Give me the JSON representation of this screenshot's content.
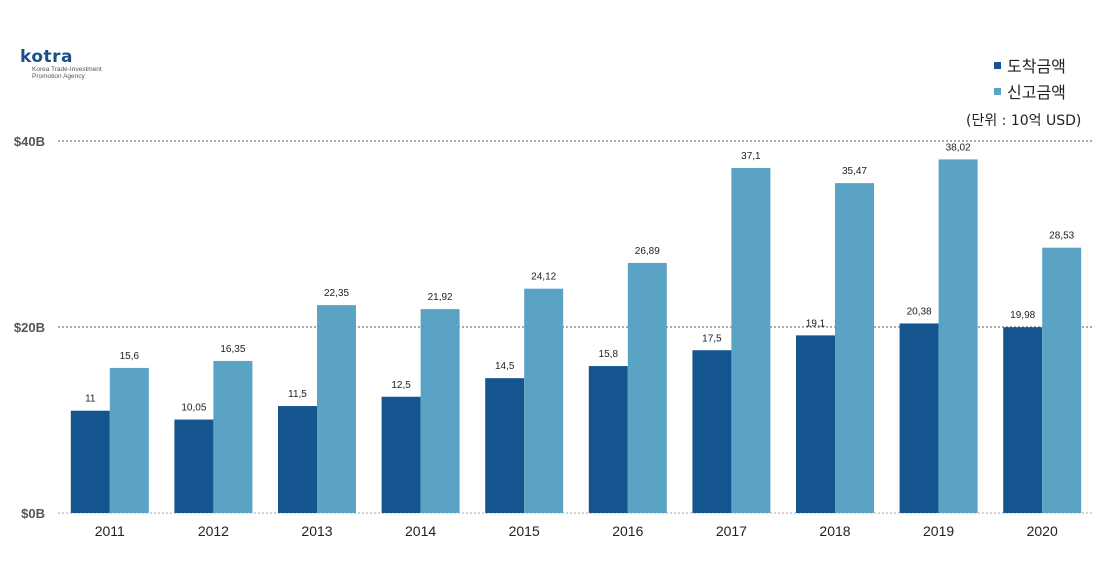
{
  "logo": {
    "brand": "kotra",
    "line1": "Korea Trade-Investment",
    "line2": "Promotion Agency"
  },
  "unit_note": "(단위 : 10억 USD)",
  "colors": {
    "arrival": "#15558f",
    "reported": "#5ba3c4",
    "gridline": "#555555",
    "baseline": "#aaaaaa"
  },
  "chart_data": {
    "type": "bar",
    "categories": [
      "2011",
      "2012",
      "2013",
      "2014",
      "2015",
      "2016",
      "2017",
      "2018",
      "2019",
      "2020"
    ],
    "series": [
      {
        "name": "도착금액",
        "values": [
          11,
          10.05,
          11.5,
          12.5,
          14.5,
          15.8,
          17.5,
          19.1,
          20.38,
          19.98
        ],
        "labels": [
          "11",
          "10,05",
          "11,5",
          "12,5",
          "14,5",
          "15,8",
          "17,5",
          "19,1",
          "20,38",
          "19,98"
        ]
      },
      {
        "name": "신고금액",
        "values": [
          15.6,
          16.35,
          22.35,
          21.92,
          24.12,
          26.89,
          37.1,
          35.47,
          38.02,
          28.53
        ],
        "labels": [
          "15,6",
          "16,35",
          "22,35",
          "21,92",
          "24,12",
          "26,89",
          "37,1",
          "35,47",
          "38,02",
          "28,53"
        ]
      }
    ],
    "ylim": [
      0,
      40
    ],
    "yticks": [
      {
        "value": 0,
        "label": "$0B"
      },
      {
        "value": 20,
        "label": "$20B"
      },
      {
        "value": 40,
        "label": "$40B"
      }
    ],
    "grid": true,
    "legend_position": "top-right"
  }
}
